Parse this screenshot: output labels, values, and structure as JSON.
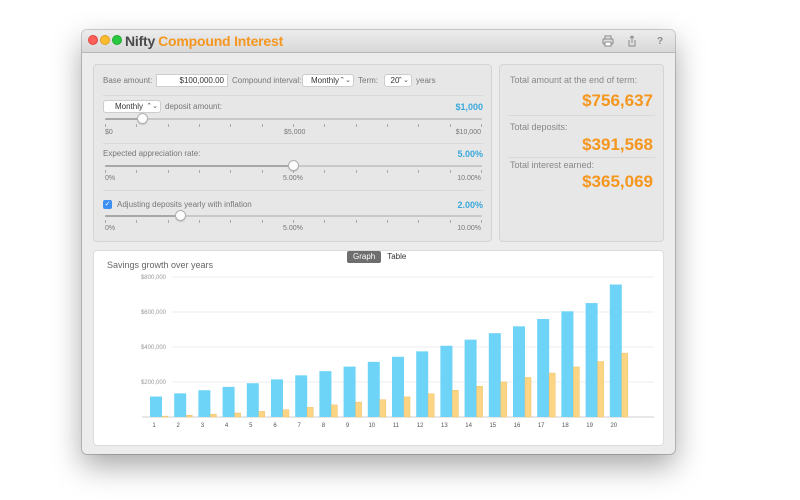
{
  "window": {
    "title_part1": "Nifty",
    "title_part2": "Compound Interest"
  },
  "toolbar": {
    "icons": [
      "print-icon",
      "share-icon",
      "help-icon"
    ],
    "help_glyph": "?"
  },
  "inputs": {
    "base_amount_label": "Base amount:",
    "base_amount_value": "$100,000.00",
    "compound_interval_label": "Compound interval:",
    "compound_interval_value": "Monthly",
    "term_label": "Term:",
    "term_value": "20",
    "term_unit": "years"
  },
  "deposit": {
    "frequency_value": "Monthly",
    "label": "deposit amount:",
    "value": "$1,000",
    "slider_fraction": 0.1,
    "tick_min": "$0",
    "tick_mid": "$5,000",
    "tick_max": "$10,000"
  },
  "appreciation": {
    "label": "Expected appreciation rate:",
    "value": "5.00%",
    "slider_fraction": 0.5,
    "tick_min": "0%",
    "tick_mid": "5.00%",
    "tick_max": "10.00%"
  },
  "inflation": {
    "checked": true,
    "label": "Adjusting deposits yearly with inflation",
    "value": "2.00%",
    "slider_fraction": 0.2,
    "tick_min": "0%",
    "tick_mid": "5.00%",
    "tick_max": "10.00%"
  },
  "summary": {
    "total_label": "Total amount at the end of term:",
    "total_value": "$756,637",
    "deposits_label": "Total deposits:",
    "deposits_value": "$391,568",
    "interest_label": "Total interest earned:",
    "interest_value": "$365,069"
  },
  "view_toggle": {
    "graph_label": "Graph",
    "table_label": "Table",
    "selected": "Graph"
  },
  "colors": {
    "accent_orange": "#f5961e",
    "value_blue": "#39a8dc",
    "bar_total": "#6dd3f7",
    "bar_interest": "#fbd584"
  },
  "chart_data": {
    "type": "bar",
    "title": "Savings growth over years",
    "categories": [
      "1",
      "2",
      "3",
      "4",
      "5",
      "6",
      "7",
      "8",
      "9",
      "10",
      "11",
      "12",
      "13",
      "14",
      "15",
      "16",
      "17",
      "18",
      "19",
      "20"
    ],
    "y_ticks": [
      "$200,000",
      "$400,000",
      "$600,000",
      "$800,000"
    ],
    "ylim": [
      0,
      800000
    ],
    "series": [
      {
        "values": [
          117000,
          135000,
          153000,
          172000,
          193000,
          215000,
          238000,
          262000,
          288000,
          315000,
          344000,
          375000,
          407000,
          442000,
          479000,
          518000,
          560000,
          604000,
          651000,
          757000
        ]
      },
      {
        "values": [
          5000,
          10000,
          16000,
          23000,
          32000,
          42000,
          55000,
          69000,
          85000,
          99000,
          115000,
          133000,
          153000,
          176000,
          200000,
          226000,
          251000,
          286000,
          317000,
          365000
        ]
      }
    ]
  }
}
